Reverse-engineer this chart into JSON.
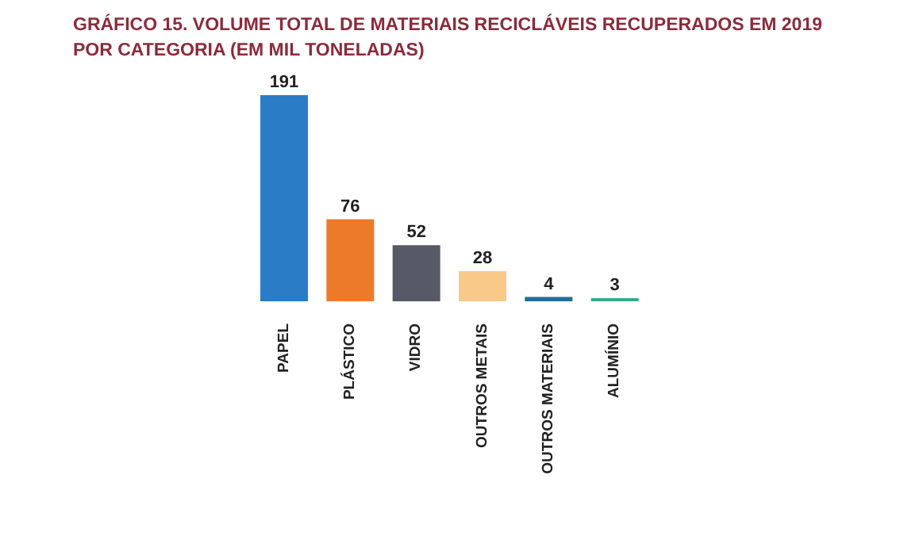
{
  "chart_data": {
    "type": "bar",
    "title": "GRÁFICO 15. VOLUME TOTAL DE MATERIAIS RECICLÁVEIS RECUPERADOS EM 2019 POR CATEGORIA (EM MIL TONELADAS)",
    "categories": [
      "PAPEL",
      "PLÁSTICO",
      "VIDRO",
      "OUTROS METAIS",
      "OUTROS MATERIAIS",
      "ALUMÍNIO"
    ],
    "values": [
      191,
      76,
      52,
      28,
      4,
      3
    ],
    "colors": [
      "#2a7cc7",
      "#ec7a2a",
      "#565a66",
      "#f9c98a",
      "#1f6f9a",
      "#3aa888"
    ],
    "data_labels": true
  }
}
